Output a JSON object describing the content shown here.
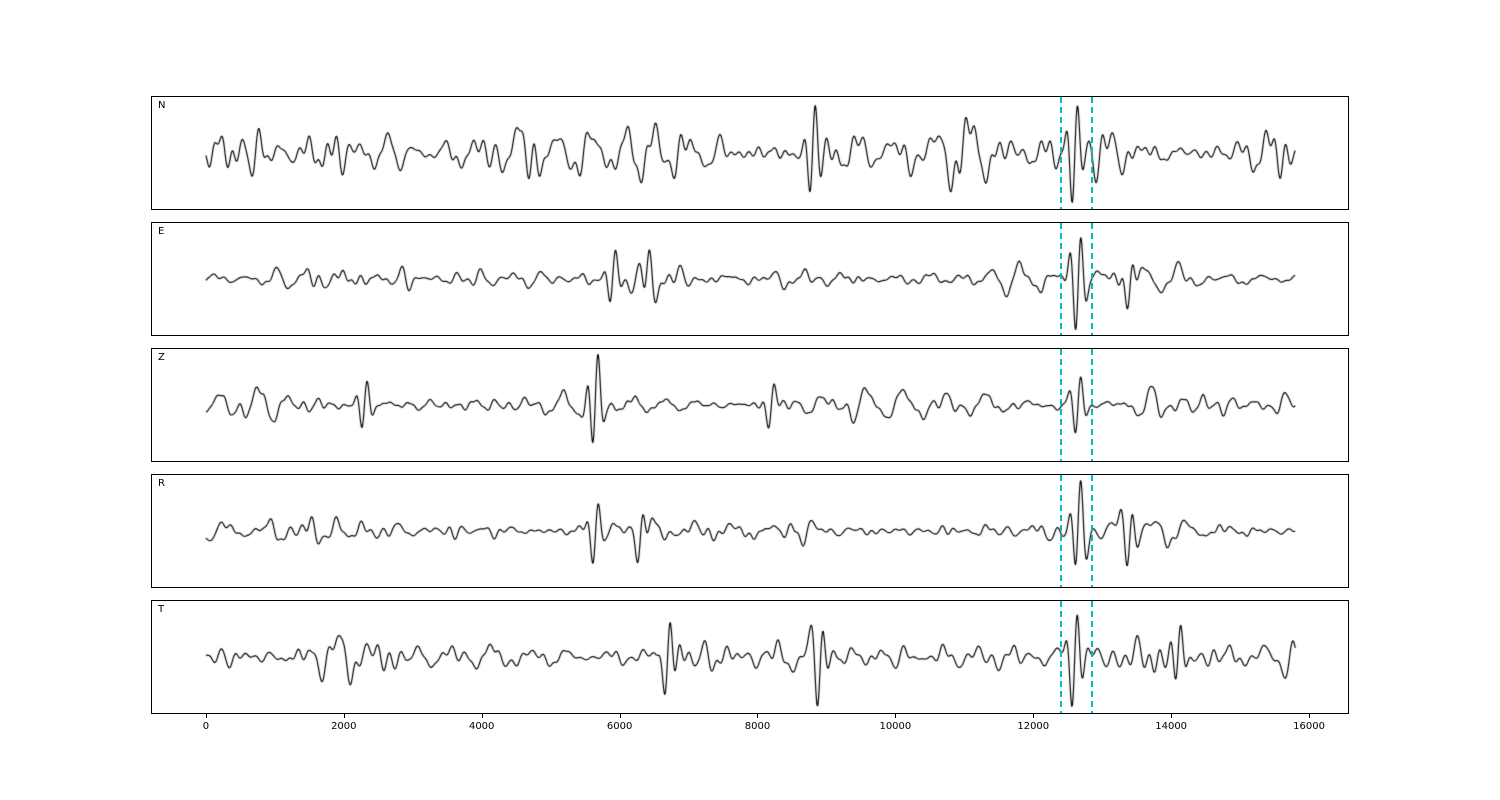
{
  "chart_data": {
    "type": "line",
    "title": "",
    "description": "Five stacked seismogram waveform panels (components N, E, Z, R, T), black traces on white, sharing one x-axis from 0 to 16000 samples, with a cyan dashed event pick window near x=12400-12850",
    "panels": [
      {
        "label": "N",
        "seed": 101,
        "fill": 0.93,
        "spikes": [
          {
            "x": 8800,
            "amp": 1.25
          },
          {
            "x": 12600,
            "amp": 1.35
          }
        ]
      },
      {
        "label": "E",
        "seed": 202,
        "fill": 0.95,
        "spikes": [
          {
            "x": 5900,
            "amp": 1.5
          },
          {
            "x": 6400,
            "amp": 1.4
          },
          {
            "x": 12650,
            "amp": 2.9
          },
          {
            "x": 13400,
            "amp": 1.5
          }
        ]
      },
      {
        "label": "Z",
        "seed": 303,
        "fill": 0.95,
        "spikes": [
          {
            "x": 2300,
            "amp": 1.5
          },
          {
            "x": 5650,
            "amp": 2.9
          },
          {
            "x": 8200,
            "amp": 1.4
          },
          {
            "x": 12650,
            "amp": 1.8
          }
        ]
      },
      {
        "label": "R",
        "seed": 404,
        "fill": 0.95,
        "spikes": [
          {
            "x": 5650,
            "amp": 1.9
          },
          {
            "x": 6300,
            "amp": 1.8
          },
          {
            "x": 12650,
            "amp": 2.9
          },
          {
            "x": 13400,
            "amp": 1.5
          }
        ]
      },
      {
        "label": "T",
        "seed": 505,
        "fill": 0.93,
        "spikes": [
          {
            "x": 6700,
            "amp": 1.6
          },
          {
            "x": 8900,
            "amp": 1.4
          },
          {
            "x": 12600,
            "amp": 1.9
          },
          {
            "x": 14100,
            "amp": 1.6
          }
        ]
      }
    ],
    "x": {
      "min_data": 0,
      "max_data": 15800,
      "xlim": [
        -782,
        16565
      ]
    },
    "x_ticks": {
      "values": [
        0,
        2000,
        4000,
        6000,
        8000,
        10000,
        12000,
        14000,
        16000
      ],
      "labels": [
        "0",
        "2000",
        "4000",
        "6000",
        "8000",
        "10000",
        "12000",
        "14000",
        "16000"
      ]
    },
    "event_window": {
      "x1": 12400,
      "x2": 12850
    },
    "colors": {
      "line": "#000000",
      "event": "#00bfbf",
      "frame": "#000000",
      "background": "#ffffff",
      "tick_label": "#000000"
    },
    "grid": false,
    "legend": false,
    "synthesis": {
      "n_points": 2200,
      "n_components": 70,
      "period_min": 110,
      "period_max": 620,
      "wavelet_sigma": 110,
      "wavelet_period": 175
    }
  }
}
